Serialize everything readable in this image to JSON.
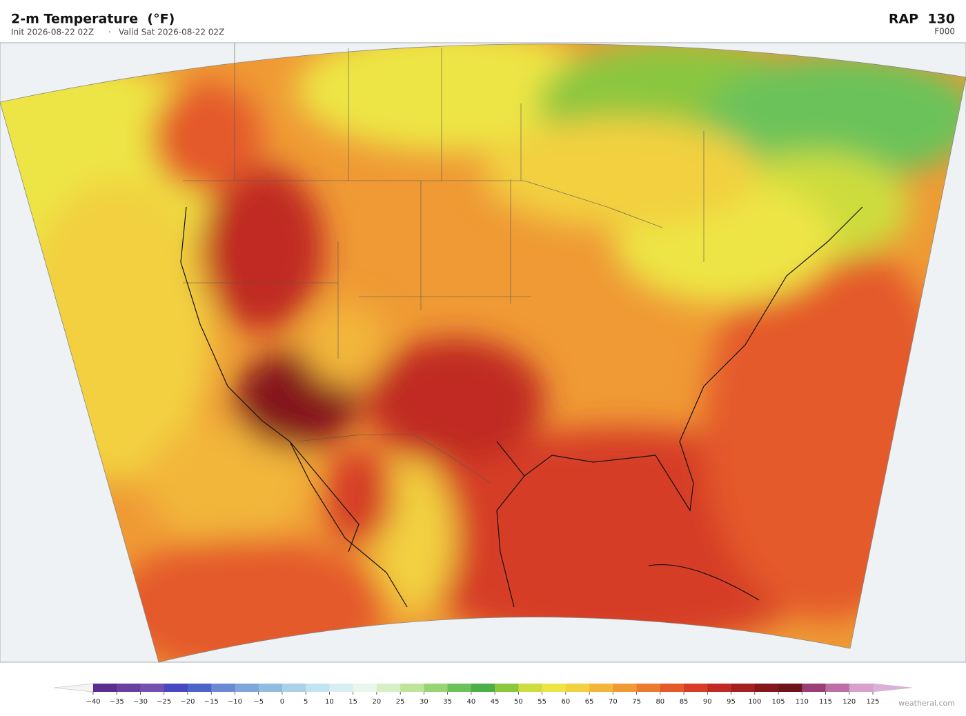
{
  "header": {
    "title": "2-m Temperature  (°F)",
    "init": "Init 2026-08-22 02Z",
    "separator": "·",
    "valid": "Valid Sat 2026-08-22 02Z",
    "model": "RAP  130",
    "forecast_hour": "F000"
  },
  "colorbar": {
    "ticks": [
      {
        "value": -40,
        "label": "−40"
      },
      {
        "value": -35,
        "label": "−35"
      },
      {
        "value": -30,
        "label": "−30"
      },
      {
        "value": -25,
        "label": "−25"
      },
      {
        "value": -20,
        "label": "−20"
      },
      {
        "value": -15,
        "label": "−15"
      },
      {
        "value": -10,
        "label": "−10"
      },
      {
        "value": -5,
        "label": "−5"
      },
      0,
      5,
      10,
      15,
      20,
      25,
      30,
      35,
      40,
      45,
      50,
      55,
      60,
      65,
      70,
      75,
      80,
      85,
      90,
      95,
      100,
      105,
      110,
      115,
      120,
      125
    ],
    "colors": [
      "#5b2d8e",
      "#6a3fa0",
      "#7450b0",
      "#4848c0",
      "#4a64c8",
      "#6a8ad4",
      "#7fa6da",
      "#8fbde0",
      "#a9d2e8",
      "#c2e3f0",
      "#d7eef3",
      "#e8f6ec",
      "#d6efc6",
      "#bde49a",
      "#97d474",
      "#6cc25a",
      "#4caf48",
      "#8bc63f",
      "#cddc3e",
      "#ede544",
      "#f2d040",
      "#f2b63a",
      "#ef9a35",
      "#ea7c2f",
      "#e45a2a",
      "#d63c26",
      "#c02a24",
      "#a4201f",
      "#85171c",
      "#6e1419",
      "#9c3f77",
      "#bb6fa6",
      "#d7a1cc"
    ],
    "extend_colors": [
      "#f4f4f4",
      "#dcb0d8"
    ]
  },
  "footer": {
    "watermark": "weatherai.com"
  }
}
